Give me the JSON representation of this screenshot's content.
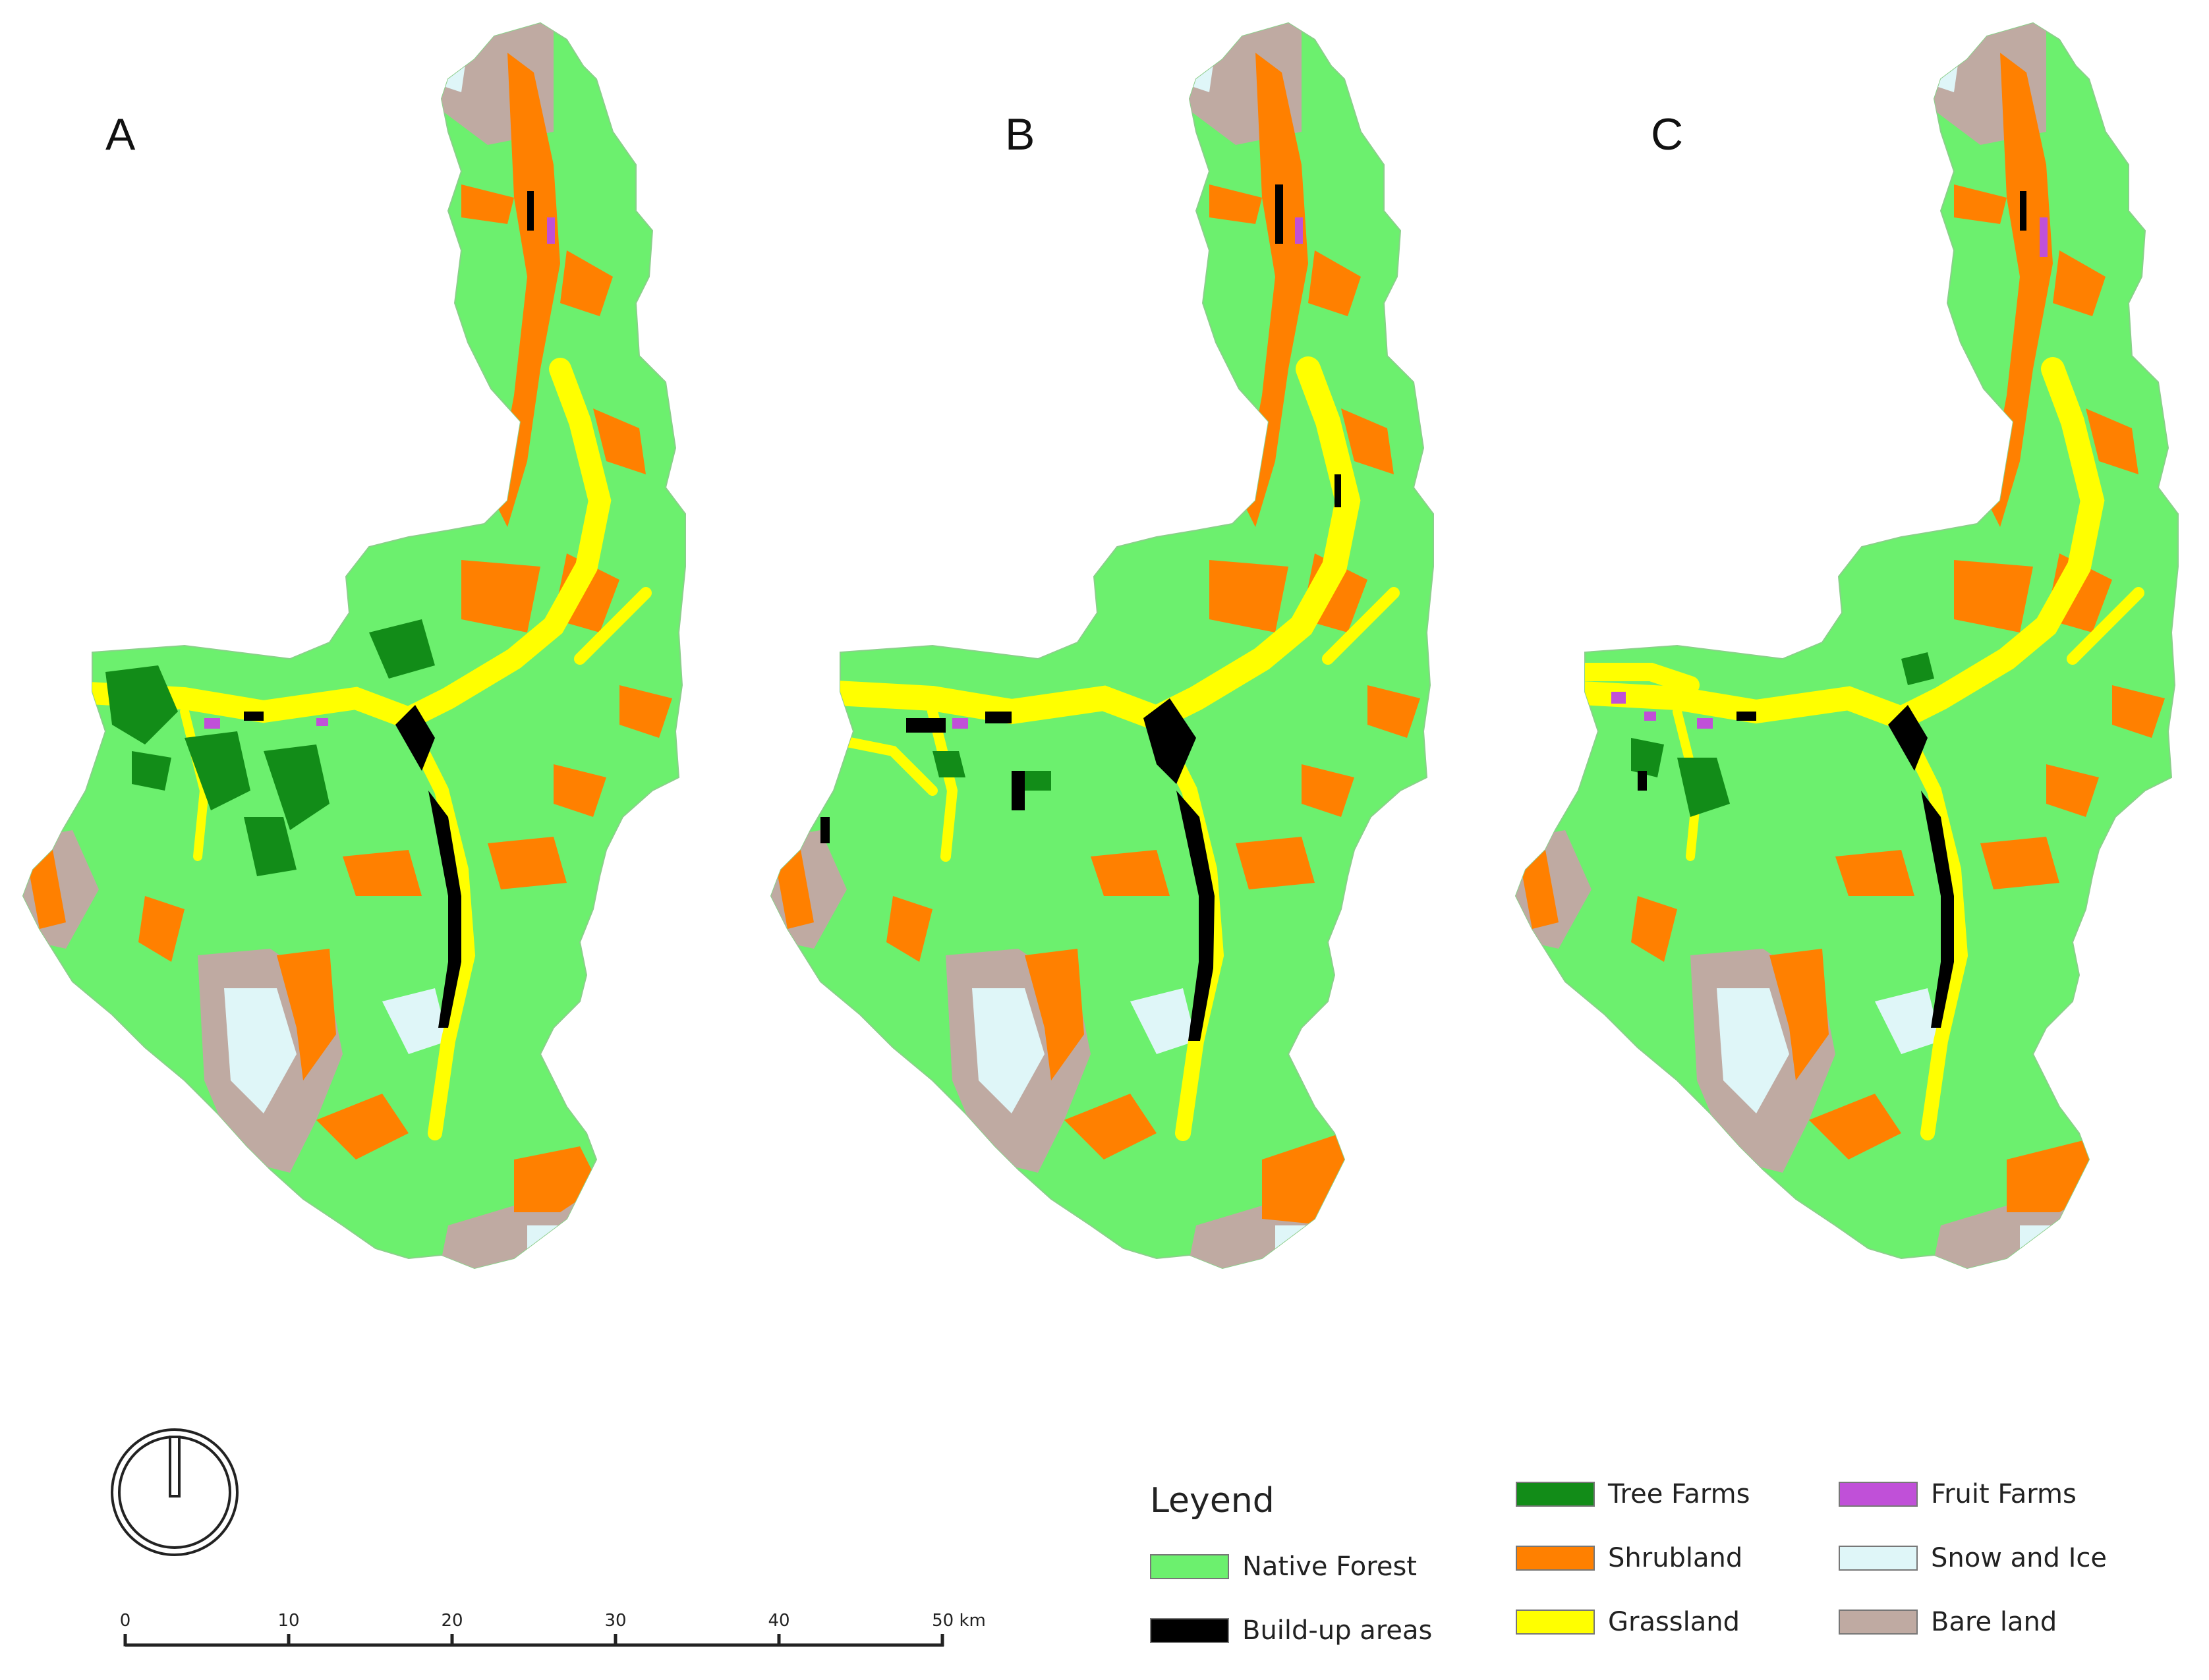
{
  "panels": [
    {
      "label": "A",
      "variant": "A"
    },
    {
      "label": "B",
      "variant": "B"
    },
    {
      "label": "C",
      "variant": "C"
    }
  ],
  "legend": {
    "title": "Leyend",
    "items": [
      {
        "label": "Native Forest",
        "color": "#6cf06e"
      },
      {
        "label": "Build-up areas",
        "color": "#000000"
      },
      {
        "label": "Tree Farms",
        "color": "#128c18"
      },
      {
        "label": "Shrubland",
        "color": "#ff8000"
      },
      {
        "label": "Grassland",
        "color": "#ffff00"
      },
      {
        "label": "Fruit Farms",
        "color": "#c050d8"
      },
      {
        "label": "Snow and Ice",
        "color": "#dff6f8"
      },
      {
        "label": "Bare land",
        "color": "#bfaaa2"
      }
    ]
  },
  "scale_bar": {
    "ticks": [
      "0",
      "10",
      "20",
      "30",
      "40",
      "50 km"
    ]
  },
  "north_arrow": {
    "icon": "north-arrow-icon"
  }
}
